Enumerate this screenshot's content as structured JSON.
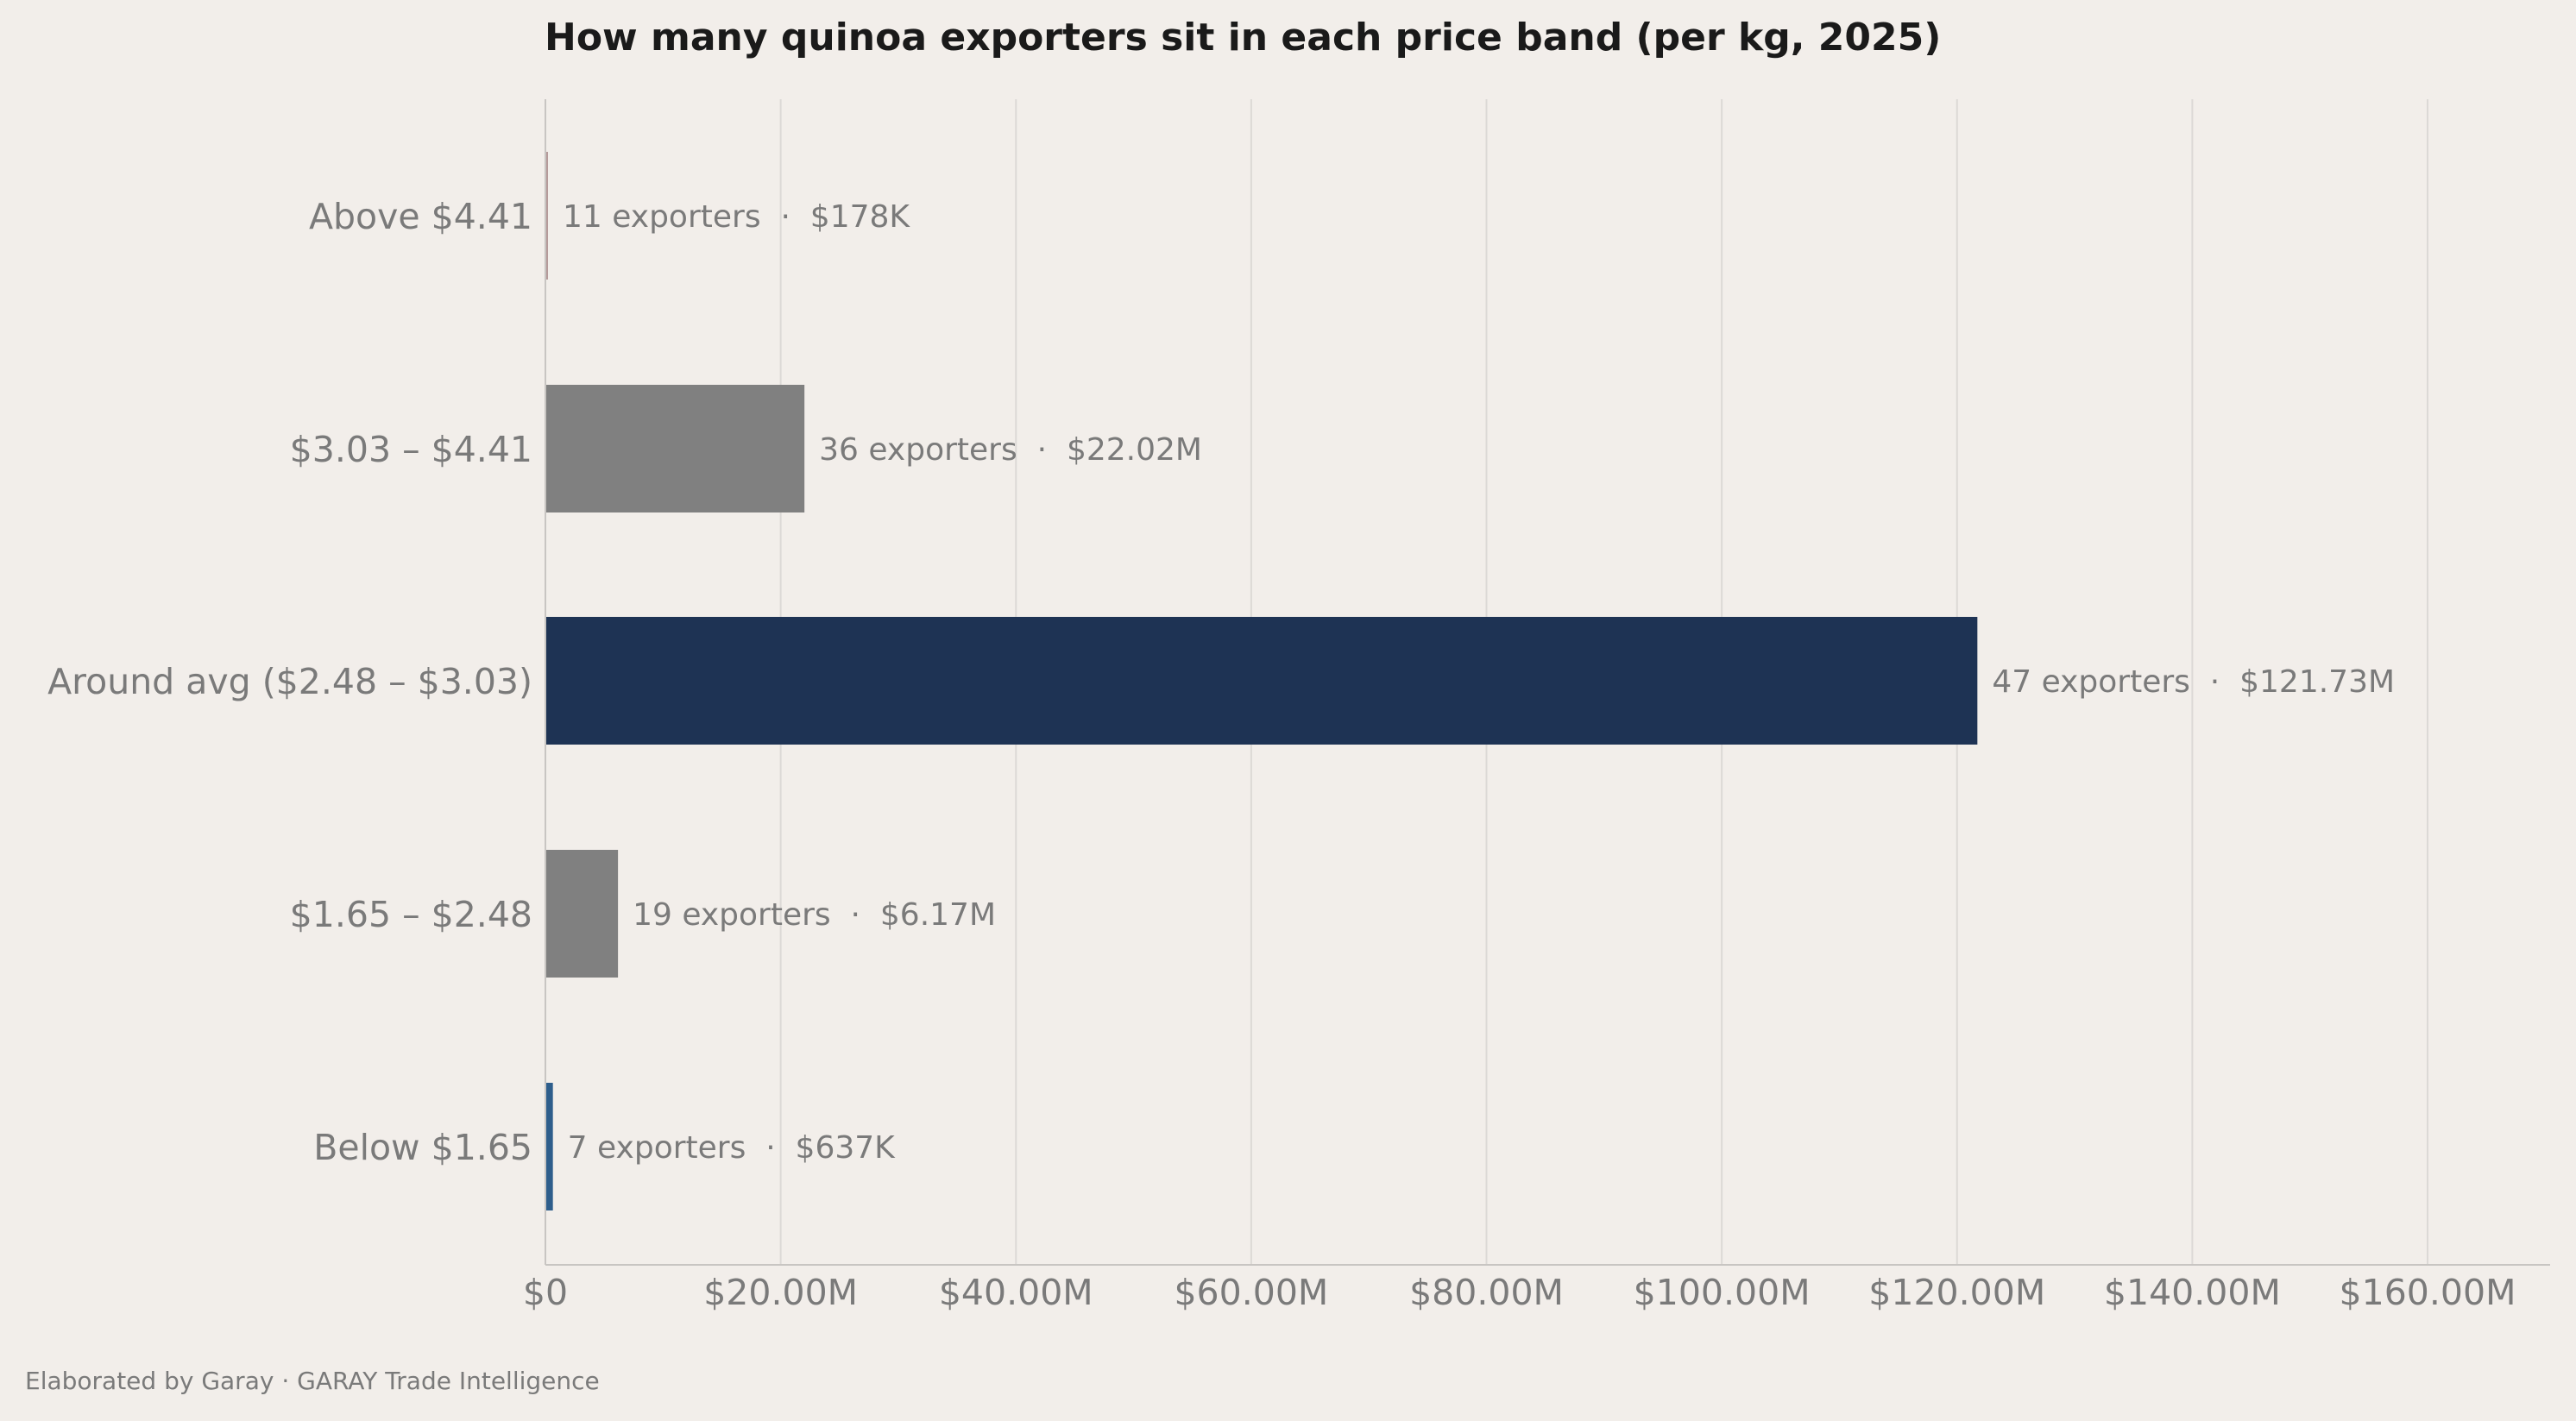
{
  "chart_data": {
    "type": "bar",
    "orientation": "horizontal",
    "title": "How many quinoa exporters sit in each price band (per kg, 2025)",
    "xlabel": "",
    "ylabel": "",
    "xlim": [
      0,
      170000000
    ],
    "x_ticks": [
      0,
      20000000,
      40000000,
      60000000,
      80000000,
      100000000,
      120000000,
      140000000,
      160000000
    ],
    "x_tick_labels": [
      "$0",
      "$20.00M",
      "$40.00M",
      "$60.00M",
      "$80.00M",
      "$100.00M",
      "$120.00M",
      "$140.00M",
      "$160.00M"
    ],
    "grid": "vertical",
    "legend": "none",
    "categories": [
      "Above $4.41",
      "$3.03 – $4.41",
      "Around avg ($2.48 – $3.03)",
      "$1.65 – $2.48",
      "Below $1.65"
    ],
    "values": [
      178000,
      22020000,
      121730000,
      6170000,
      637000
    ],
    "exporters": [
      11,
      36,
      47,
      19,
      7
    ],
    "data_labels": [
      "11 exporters  ·  $178K",
      "36 exporters  ·  $22.02M",
      "47 exporters  ·  $121.73M",
      "19 exporters  ·  $6.17M",
      "7 exporters  ·  $637K"
    ],
    "colors": [
      "#b59a9a",
      "#808080",
      "#1e3354",
      "#808080",
      "#2e5e8c"
    ]
  },
  "footer": "Elaborated by Garay  ·  GARAY Trade Intelligence",
  "style": {
    "background": "#f2eeea",
    "grid_color": "#dcd9d6",
    "axis_color": "#c8c5c2",
    "text_color": "#7a7a7a",
    "title_color": "#1a1a1a"
  }
}
